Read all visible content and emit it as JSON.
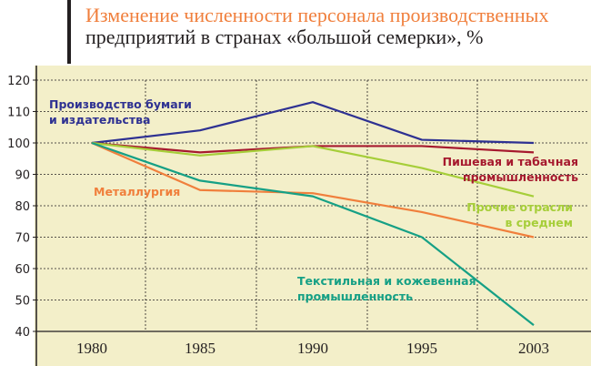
{
  "title": {
    "line1": "Изменение численности персонала производственных",
    "line2": "предприятий в странах «большой семерки», %"
  },
  "chart_data": {
    "type": "line",
    "title": "Изменение численности персонала производственных предприятий в странах «большой семерки», %",
    "x": [
      "1980",
      "1985",
      "1990",
      "1995",
      "2003"
    ],
    "ylim": [
      40,
      120
    ],
    "yticks": [
      40,
      50,
      60,
      70,
      80,
      90,
      100,
      110,
      120
    ],
    "grid": true,
    "series": [
      {
        "name": "Производство бумаги и издательства",
        "label_lines": [
          "Производство бумаги",
          "и издательства"
        ],
        "color": "#2e3192",
        "values": [
          100,
          104,
          113,
          101,
          100
        ]
      },
      {
        "name": "Пишевая и табачная промышленность",
        "label_lines": [
          "Пишевая и табачная",
          "промышленность"
        ],
        "color": "#a6192e",
        "values": [
          100,
          97,
          99,
          99,
          97
        ]
      },
      {
        "name": "Прочие отрасли в среднем",
        "label_lines": [
          "Прочие отрасли",
          "в среднем"
        ],
        "color": "#a6ce39",
        "values": [
          100,
          96,
          99,
          92,
          83
        ]
      },
      {
        "name": "Металлургия",
        "label_lines": [
          "Металлургия"
        ],
        "color": "#f07f3c",
        "values": [
          100,
          85,
          84,
          78,
          70
        ]
      },
      {
        "name": "Текстильная и кожевенная промышленность",
        "label_lines": [
          "Текстильная и кожевенная",
          "промышленность"
        ],
        "color": "#16a085",
        "values": [
          100,
          88,
          83,
          70,
          42
        ]
      }
    ]
  }
}
